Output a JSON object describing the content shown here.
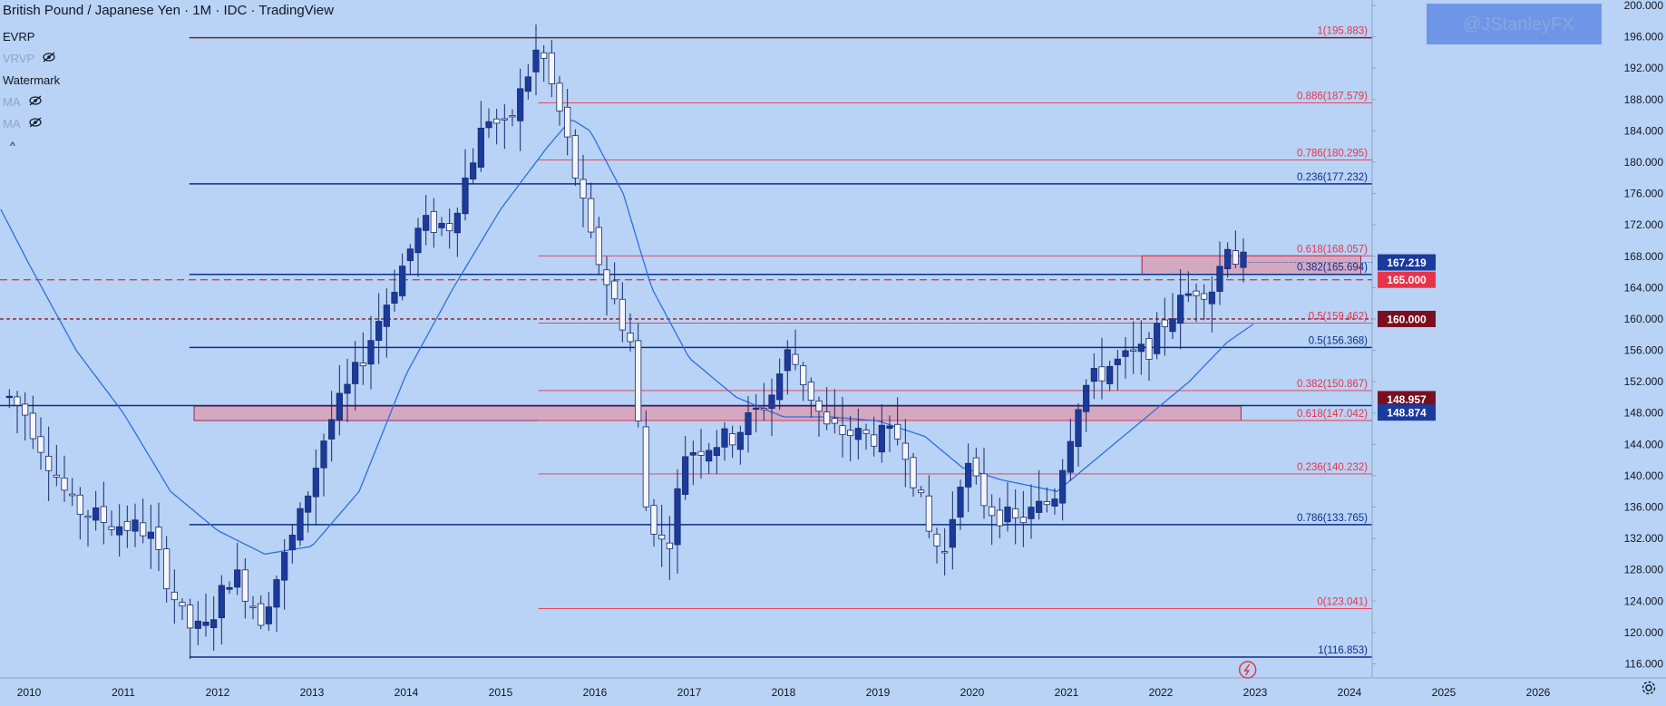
{
  "header": {
    "title": "British Pound / Japanese Yen · 1M · IDC · TradingView"
  },
  "legend": [
    {
      "label": "EVRP",
      "id": "ema"
    },
    {
      "label": "VRVP",
      "id": "vrvp",
      "hidden": true
    },
    {
      "label": "Watermark",
      "id": "watermark"
    },
    {
      "label": "MA",
      "id": "ma1",
      "hidden": true
    },
    {
      "label": "MA",
      "id": "ma2",
      "hidden": true
    }
  ],
  "watermark": {
    "text": "@JStanleyFX"
  },
  "colors": {
    "background": "#b8d3f5",
    "bull": "#1a3a9c",
    "bear": "#f4f6fb",
    "ema": "#2f6fe0",
    "fib": "#e8344a",
    "level": "#0d2f8c",
    "zone": "#d9a0b8"
  },
  "chart_data": {
    "type": "candlestick",
    "title": "British Pound / Japanese Yen · 1M · IDC · TradingView",
    "x_ticks": [
      "2010",
      "2011",
      "2012",
      "2013",
      "2014",
      "2015",
      "2016",
      "2017",
      "2018",
      "2019",
      "2020",
      "2021",
      "2022",
      "2023",
      "2024",
      "2025",
      "2026"
    ],
    "y_ticks": [
      "116.000",
      "120.000",
      "124.000",
      "128.000",
      "132.000",
      "136.000",
      "140.000",
      "144.000",
      "148.000",
      "152.000",
      "156.000",
      "160.000",
      "164.000",
      "168.000",
      "172.000",
      "176.000",
      "180.000",
      "184.000",
      "188.000",
      "192.000",
      "196.000",
      "200.000"
    ],
    "ylim": [
      114.2,
      200.7
    ],
    "xlim": [
      2009.7,
      2027.05
    ],
    "candles_2009_11_to_2022_11_anchors": [
      [
        2009.83,
        150.0
      ],
      [
        2010.0,
        148.0
      ],
      [
        2010.5,
        136.0
      ],
      [
        2010.9,
        134.0
      ],
      [
        2011.3,
        133.0
      ],
      [
        2011.7,
        121.0
      ],
      [
        2011.9,
        120.0
      ],
      [
        2012.2,
        128.0
      ],
      [
        2012.5,
        122.0
      ],
      [
        2012.9,
        134.0
      ],
      [
        2013.2,
        146.0
      ],
      [
        2013.5,
        153.0
      ],
      [
        2013.9,
        164.0
      ],
      [
        2014.2,
        172.0
      ],
      [
        2014.5,
        172.0
      ],
      [
        2014.9,
        186.0
      ],
      [
        2015.1,
        184.0
      ],
      [
        2015.45,
        195.0
      ],
      [
        2015.7,
        185.0
      ],
      [
        2016.0,
        170.0
      ],
      [
        2016.45,
        156.0
      ],
      [
        2016.55,
        137.0
      ],
      [
        2016.8,
        130.0
      ],
      [
        2017.0,
        143.0
      ],
      [
        2017.5,
        145.0
      ],
      [
        2017.9,
        150.0
      ],
      [
        2018.1,
        156.0
      ],
      [
        2018.5,
        146.0
      ],
      [
        2018.9,
        145.0
      ],
      [
        2019.3,
        145.0
      ],
      [
        2019.6,
        132.0
      ],
      [
        2019.75,
        130.0
      ],
      [
        2019.95,
        142.0
      ],
      [
        2020.2,
        136.0
      ],
      [
        2020.5,
        134.0
      ],
      [
        2020.9,
        137.0
      ],
      [
        2021.2,
        151.0
      ],
      [
        2021.5,
        154.0
      ],
      [
        2021.9,
        156.0
      ],
      [
        2022.1,
        160.0
      ],
      [
        2022.4,
        164.0
      ],
      [
        2022.6,
        164.0
      ],
      [
        2022.75,
        170.0
      ],
      [
        2022.85,
        167.2
      ]
    ],
    "ema_anchors": [
      [
        2009.7,
        174.0
      ],
      [
        2010.0,
        167.0
      ],
      [
        2010.5,
        156.0
      ],
      [
        2011.0,
        148.0
      ],
      [
        2011.5,
        138.0
      ],
      [
        2012.0,
        133.0
      ],
      [
        2012.5,
        130.0
      ],
      [
        2013.0,
        131.0
      ],
      [
        2013.5,
        138.0
      ],
      [
        2014.0,
        153.0
      ],
      [
        2014.5,
        164.0
      ],
      [
        2015.0,
        174.0
      ],
      [
        2015.5,
        182.0
      ],
      [
        2015.75,
        185.5
      ],
      [
        2015.95,
        184.0
      ],
      [
        2016.3,
        176.0
      ],
      [
        2016.6,
        164.0
      ],
      [
        2017.0,
        155.0
      ],
      [
        2017.5,
        150.0
      ],
      [
        2018.0,
        147.5
      ],
      [
        2018.5,
        147.5
      ],
      [
        2019.0,
        147.0
      ],
      [
        2019.5,
        145.0
      ],
      [
        2019.9,
        141.0
      ],
      [
        2020.3,
        139.5
      ],
      [
        2020.9,
        138.0
      ],
      [
        2021.3,
        142.0
      ],
      [
        2021.8,
        147.0
      ],
      [
        2022.3,
        152.0
      ],
      [
        2022.7,
        157.0
      ],
      [
        2023.0,
        159.5
      ]
    ],
    "horizontal_levels": [
      {
        "price": 195.883,
        "style": "solid"
      },
      {
        "price": 177.232,
        "style": "solid"
      },
      {
        "price": 165.694,
        "style": "solid"
      },
      {
        "price": 156.368,
        "style": "solid"
      },
      {
        "price": 133.765,
        "style": "solid"
      },
      {
        "price": 116.853,
        "style": "solid"
      },
      {
        "price": 148.957,
        "style": "solid"
      }
    ],
    "dashed_levels": [
      {
        "price": 165.0,
        "color": "#e8344a"
      },
      {
        "price": 160.0,
        "color": "#8a1a2a"
      }
    ],
    "fib_left": [
      {
        "label": "0.236(177.232)",
        "price": 177.232
      },
      {
        "label": "0.382(165.694)",
        "price": 165.694
      },
      {
        "label": "0.5(156.368)",
        "price": 156.368
      },
      {
        "label": "0.786(133.765)",
        "price": 133.765
      },
      {
        "label": "1(116.853)",
        "price": 116.853
      }
    ],
    "fib_right": [
      {
        "label": "1(195.883)",
        "price": 195.883
      },
      {
        "label": "0.886(187.579)",
        "price": 187.579
      },
      {
        "label": "0.786(180.295)",
        "price": 180.295
      },
      {
        "label": "0.618(168.057)",
        "price": 168.057
      },
      {
        "label": "0.5(159.462)",
        "price": 159.462
      },
      {
        "label": "0.382(150.867)",
        "price": 150.867
      },
      {
        "label": "0.618(147.042)",
        "price": 147.042
      },
      {
        "label": "0.236(140.232)",
        "price": 140.232
      },
      {
        "label": "0(123.041)",
        "price": 123.041
      }
    ],
    "zones": [
      {
        "from": 147.042,
        "to": 148.874,
        "x_from": 2011.75,
        "x_to": 2022.85
      },
      {
        "from": 165.694,
        "to": 168.057,
        "x_from": 2021.8,
        "x_to": 2024.12
      }
    ],
    "price_tags": [
      {
        "value": "167.219",
        "price": 167.219,
        "bg": "#1a3a9c"
      },
      {
        "value": "165.000",
        "price": 165.0,
        "bg": "#e8344a"
      },
      {
        "value": "160.000",
        "price": 160.0,
        "bg": "#7a0f1f"
      },
      {
        "value": "148.957",
        "price": 148.957,
        "bg": "#7a0f1f"
      },
      {
        "value": "148.874",
        "price": 148.874,
        "bg": "#1a3a9c"
      }
    ]
  }
}
